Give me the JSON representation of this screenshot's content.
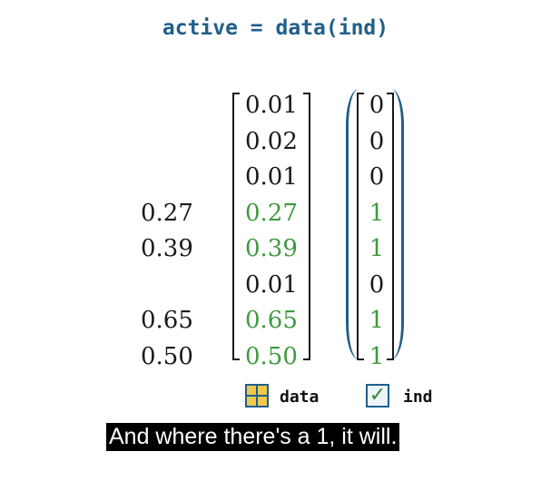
{
  "code_title": "active = data(ind)",
  "output_values": [
    "0.27",
    "0.39",
    "0.65",
    "0.50"
  ],
  "data_values": [
    "0.01",
    "0.02",
    "0.01",
    "0.27",
    "0.39",
    "0.01",
    "0.65",
    "0.50"
  ],
  "ind_values": [
    "0",
    "0",
    "0",
    "1",
    "1",
    "0",
    "1",
    "1"
  ],
  "selected_rows": [
    false,
    false,
    false,
    true,
    true,
    false,
    true,
    true
  ],
  "colors": {
    "code": "#1f5f8b",
    "selected": "#3f9a3f",
    "default_text": "#1a1a1a",
    "logical_parens": "#1f5f8b"
  },
  "legend": {
    "data_label": "data",
    "ind_label": "ind",
    "data_icon": "table-grid-icon",
    "ind_icon": "checkbox-checked-icon"
  },
  "caption": "And where there's a 1, it will."
}
